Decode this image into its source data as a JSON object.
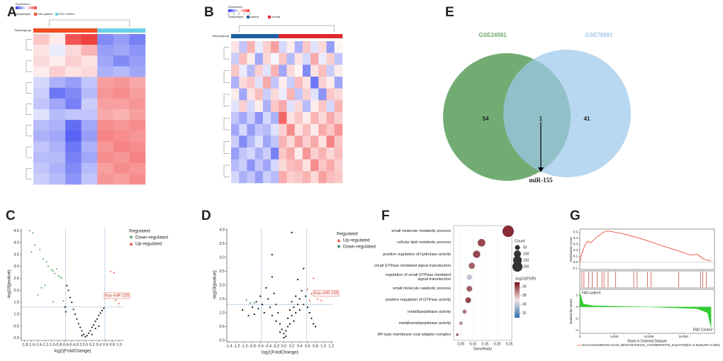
{
  "chart_data": [
    {
      "type": "heatmap",
      "panel": "A",
      "legend_title": "Expression",
      "group_title": "Sampletype",
      "row_group_label": "Samplegroup",
      "groups": [
        {
          "name": "FAD patient",
          "color": "#f04e23"
        },
        {
          "name": "FAD Control",
          "color": "#6cd0e8"
        }
      ],
      "column_group": [
        0,
        0,
        0,
        0,
        1,
        1,
        1
      ],
      "zlim": [
        -2,
        2
      ],
      "colors": [
        "#2f3cf0",
        "#ffffff",
        "#f04040"
      ],
      "matrix": [
        [
          0.6,
          0.2,
          1.8,
          2.0,
          -1.2,
          -1.0,
          -1.3
        ],
        [
          0.3,
          -0.2,
          0.4,
          0.8,
          -1.0,
          -0.9,
          -1.1
        ],
        [
          0.4,
          0.2,
          0.5,
          0.3,
          -0.9,
          -1.2,
          -1.0
        ],
        [
          0.2,
          0.5,
          0.3,
          0.4,
          -0.8,
          -0.7,
          -0.9
        ],
        [
          -0.4,
          -0.8,
          -1.0,
          -0.6,
          1.0,
          1.1,
          0.9
        ],
        [
          -0.5,
          -1.4,
          -1.2,
          -0.7,
          1.1,
          1.2,
          1.0
        ],
        [
          -0.6,
          -0.9,
          -1.3,
          -0.5,
          1.0,
          1.0,
          1.1
        ],
        [
          -0.3,
          -0.7,
          -0.6,
          -0.6,
          0.9,
          0.8,
          1.0
        ],
        [
          -0.7,
          -0.8,
          -1.5,
          -0.9,
          1.2,
          1.1,
          1.2
        ],
        [
          -0.8,
          -0.9,
          -1.6,
          -1.0,
          1.3,
          1.2,
          1.1
        ],
        [
          -0.6,
          -0.8,
          -1.4,
          -0.8,
          1.1,
          1.3,
          1.2
        ],
        [
          -0.7,
          -0.7,
          -1.3,
          -0.9,
          1.2,
          1.1,
          1.3
        ],
        [
          -0.6,
          -0.8,
          -1.2,
          -0.7,
          1.0,
          1.2,
          1.1
        ],
        [
          -0.5,
          -0.7,
          -1.1,
          -0.6,
          1.1,
          1.0,
          1.2
        ]
      ]
    },
    {
      "type": "heatmap",
      "panel": "B",
      "legend_title": "Expression",
      "group_title": "Sampletype",
      "row_group_label": "Samplegroup",
      "groups": [
        {
          "name": "patient",
          "color": "#1f5fa0"
        },
        {
          "name": "normal",
          "color": "#e0282d"
        }
      ],
      "column_group": [
        0,
        0,
        0,
        0,
        0,
        0,
        1,
        1,
        1,
        1,
        1,
        1,
        1,
        1
      ],
      "zlim": [
        -2,
        2
      ],
      "zticks": [
        -2,
        -1,
        0,
        1,
        2
      ],
      "colors": [
        "#2f3cf0",
        "#ffffff",
        "#f04040"
      ],
      "matrix": [
        [
          0.3,
          -0.6,
          0.8,
          -0.2,
          0.5,
          1.0,
          -0.4,
          0.2,
          -0.8,
          0.6,
          -0.3,
          0.4,
          -1.0,
          0.1
        ],
        [
          -0.5,
          0.7,
          0.2,
          -0.9,
          0.4,
          -0.1,
          0.6,
          -0.7,
          0.3,
          -0.4,
          0.9,
          -0.2,
          0.5,
          -0.6
        ],
        [
          0.6,
          -0.2,
          -0.7,
          0.5,
          -0.3,
          0.8,
          -0.9,
          0.4,
          0.1,
          -1.2,
          0.3,
          0.7,
          -0.5,
          0.2
        ],
        [
          -0.8,
          0.4,
          0.6,
          -0.3,
          0.9,
          -0.6,
          0.2,
          -0.5,
          0.7,
          0.3,
          -1.4,
          0.5,
          0.2,
          -0.9
        ],
        [
          0.2,
          -0.9,
          0.3,
          0.7,
          -0.5,
          0.4,
          -0.2,
          0.8,
          -0.6,
          0.5,
          -0.3,
          -1.1,
          0.6,
          0.4
        ],
        [
          -0.3,
          0.5,
          -0.4,
          0.2,
          -0.8,
          0.6,
          0.9,
          -0.3,
          0.4,
          -0.7,
          0.2,
          0.6,
          -0.4,
          0.8
        ],
        [
          -0.6,
          -0.9,
          -0.5,
          -1.1,
          -0.4,
          -0.8,
          1.6,
          0.3,
          0.6,
          0.2,
          0.8,
          0.4,
          0.9,
          0.5
        ],
        [
          -0.9,
          -0.4,
          -1.0,
          -0.6,
          -0.7,
          -0.3,
          0.5,
          1.2,
          0.3,
          0.7,
          0.2,
          0.9,
          0.6,
          1.1
        ],
        [
          -0.5,
          -1.2,
          -0.7,
          -0.3,
          -0.9,
          -0.6,
          0.8,
          0.4,
          1.0,
          0.5,
          0.9,
          0.3,
          1.3,
          0.6
        ],
        [
          -1.0,
          -0.6,
          -0.4,
          -0.8,
          -0.5,
          -1.3,
          0.6,
          0.9,
          0.2,
          1.1,
          0.5,
          0.8,
          0.4,
          0.7
        ],
        [
          -0.7,
          -0.5,
          -1.1,
          -0.6,
          -0.9,
          -0.4,
          0.4,
          0.7,
          0.8,
          0.3,
          1.2,
          0.6,
          0.9,
          0.5
        ],
        [
          -0.4,
          -0.8,
          -0.6,
          -1.0,
          -0.5,
          -0.7,
          0.9,
          0.5,
          0.6,
          0.8,
          0.4,
          1.0,
          0.7,
          0.6
        ]
      ]
    },
    {
      "type": "venn",
      "panel": "E",
      "sets": [
        {
          "name": "GSE24591",
          "color": "#6aa86a"
        },
        {
          "name": "GSE76591",
          "color": "#9cc7ea"
        }
      ],
      "values": [
        54,
        1,
        41
      ],
      "annotation": "miR-155"
    },
    {
      "type": "volcano",
      "panel": "C",
      "xlabel": "log2(FoldChange)",
      "ylabel": "-log10(pvalue)",
      "legend_title": "Regulated",
      "annotation": "hsa-miR-155",
      "xlim": [
        -1.9,
        1.15
      ],
      "ylim": [
        -0.1,
        4.6
      ],
      "xticks": [
        -1.8,
        -1.6,
        -1.4,
        -1.2,
        {
          "value": -1,
          "label": "-1.0"
        },
        -0.8,
        -0.6,
        -0.4,
        -0.2,
        {
          "value": 0,
          "label": "0.0"
        },
        0.2,
        0.4,
        0.6,
        0.8,
        {
          "value": 1,
          "label": "1.0"
        }
      ],
      "yticks": [
        {
          "value": 0,
          "label": "0.0"
        },
        0.5,
        {
          "value": 1,
          "label": "1.0"
        },
        1.5,
        {
          "value": 2,
          "label": "2.0"
        },
        2.5,
        {
          "value": 3,
          "label": "3.0"
        },
        3.5,
        {
          "value": 4,
          "label": "4.0"
        },
        4.5
      ],
      "vlines": [
        -0.58,
        0.58
      ],
      "hline": 1.3,
      "series": [
        {
          "color": "#222222",
          "marker": "circle",
          "x": [
            -0.55,
            -0.5,
            -0.45,
            -0.4,
            -0.35,
            -0.3,
            -0.25,
            -0.2,
            -0.15,
            -0.1,
            -0.05,
            0.0,
            0.05,
            0.1,
            0.15,
            0.2,
            0.25,
            0.3,
            0.35,
            0.4,
            0.45,
            0.5,
            0.55,
            -0.6,
            -0.58,
            0.2,
            -0.1,
            0.3,
            0.4
          ],
          "y": [
            2.2,
            2.0,
            1.7,
            1.5,
            1.2,
            1.0,
            0.8,
            0.6,
            0.45,
            0.3,
            0.15,
            0.05,
            0.1,
            0.2,
            0.3,
            0.45,
            0.55,
            0.7,
            0.8,
            0.95,
            1.05,
            1.15,
            1.25,
            1.3,
            1.1,
            0.15,
            0.1,
            0.4,
            0.5
          ]
        },
        {
          "name": "Down-regulated",
          "color": "#4aa55a",
          "marker": "triangle-down",
          "x": [
            -1.65,
            -1.55,
            -1.5,
            -1.6,
            -1.35,
            -1.25,
            -1.15,
            -1.1,
            -1.0,
            -0.95,
            -0.9,
            -0.85,
            -0.8,
            -0.75,
            -0.7,
            -1.3,
            -1.2,
            -1.4,
            -0.95,
            -0.65
          ],
          "y": [
            4.5,
            4.4,
            3.9,
            3.6,
            3.7,
            3.3,
            3.2,
            3.0,
            2.85,
            2.8,
            2.7,
            2.9,
            2.6,
            2.55,
            2.5,
            2.1,
            2.2,
            1.8,
            1.5,
            1.55
          ]
        },
        {
          "name": "Up-regulated",
          "color": "#e8503c",
          "marker": "triangle-up",
          "x": [
            0.75,
            0.85,
            0.7,
            0.9,
            1.0
          ],
          "y": [
            2.8,
            2.75,
            1.75,
            1.6,
            1.45
          ]
        }
      ]
    },
    {
      "type": "volcano",
      "panel": "D",
      "xlabel": "log2(FoldChange)",
      "ylabel": "-log10(pvalue)",
      "legend_title": "Regulated",
      "annotation": "hsa-miR-155",
      "xlim": [
        -1.45,
        1.25
      ],
      "ylim": [
        -0.05,
        4.05
      ],
      "xticks": [
        -1.4,
        -1.2,
        {
          "value": -1,
          "label": "-1.0"
        },
        -0.8,
        -0.6,
        -0.4,
        -0.2,
        {
          "value": 0,
          "label": "0.0"
        },
        0.2,
        0.4,
        0.6,
        0.8,
        {
          "value": 1,
          "label": "1.0"
        },
        1.2
      ],
      "yticks": [
        {
          "value": 0,
          "label": "0.0"
        },
        0.5,
        {
          "value": 1,
          "label": "1.0"
        },
        1.5,
        {
          "value": 2,
          "label": "2.0"
        },
        2.5,
        {
          "value": 3,
          "label": "3.0"
        },
        3.5,
        {
          "value": 4,
          "label": "4.0"
        }
      ],
      "vlines": [
        -0.58,
        0.58
      ],
      "hline": 1.3,
      "series": [
        {
          "color": "#111111",
          "marker": "circle",
          "x": [
            -1.05,
            -0.9,
            -0.8,
            -0.75,
            -0.7,
            -0.65,
            -0.6,
            -0.55,
            -0.5,
            -0.45,
            -0.4,
            -0.35,
            -0.3,
            -0.3,
            -0.25,
            -0.2,
            -0.2,
            -0.15,
            -0.1,
            -0.1,
            -0.05,
            0.0,
            0.0,
            0.05,
            0.05,
            0.1,
            0.1,
            0.15,
            0.15,
            0.2,
            0.2,
            0.25,
            0.25,
            0.3,
            0.3,
            0.35,
            0.35,
            0.4,
            0.4,
            0.45,
            0.5,
            0.5,
            0.55,
            0.6,
            0.65,
            0.7,
            0.75,
            0.8,
            0.2,
            -0.3
          ],
          "y": [
            1.1,
            0.9,
            1.2,
            0.95,
            1.4,
            1.15,
            1.6,
            1.3,
            1.0,
            1.9,
            1.5,
            1.2,
            2.3,
            0.9,
            1.7,
            1.3,
            0.7,
            1.0,
            0.6,
            0.3,
            0.4,
            0.1,
            0.25,
            0.35,
            0.15,
            0.5,
            0.8,
            0.6,
            1.1,
            0.9,
            1.4,
            1.2,
            0.7,
            1.6,
            1.0,
            1.3,
            2.2,
            1.5,
            1.1,
            1.8,
            1.3,
            2.6,
            1.6,
            1.2,
            1.0,
            0.8,
            0.6,
            0.5,
            3.9,
            3.1
          ]
        },
        {
          "name": "Up-regulated",
          "color": "#e8503c",
          "marker": "triangle-up",
          "x": [
            0.75,
            0.6,
            0.7,
            0.85,
            0.65,
            0.95
          ],
          "y": [
            2.25,
            1.85,
            1.7,
            1.5,
            1.45,
            1.45
          ]
        },
        {
          "name": "Down-regulated",
          "color": "#2f7a66",
          "marker": "triangle-down",
          "x": [
            -0.95,
            -0.85,
            -0.75
          ],
          "y": [
            1.45,
            1.35,
            1.35
          ]
        }
      ]
    },
    {
      "type": "dot",
      "panel": "F",
      "xlabel": "GeneRatio",
      "size_title": "Count",
      "color_title": "-log10(FDR)",
      "categories": [
        "small molecule metabolic process",
        "cellular lipid metabolic process",
        "positive regulation of hydrolase activity",
        "small GTPase mediated signal transduction",
        "regulation of small GTPase mediated signal transduction",
        "small molecule catabolic process",
        "positive regulation of GTPase activity",
        "metallopeptidase activity",
        "metalloendopeptidase activity",
        "AP-type membrane coat adaptor complex"
      ],
      "values": [
        0.245,
        0.135,
        0.115,
        0.095,
        0.085,
        0.085,
        0.08,
        0.065,
        0.05,
        0.035
      ],
      "count": [
        250,
        110,
        100,
        70,
        40,
        60,
        60,
        30,
        20,
        10
      ],
      "fdr": [
        25.5,
        26,
        26,
        26.5,
        30,
        26.5,
        26,
        27,
        27.5,
        26
      ],
      "xlim": [
        0.02,
        0.26
      ],
      "xticks": [
        0.05,
        {
          "value": 0.1,
          "label": "0.10"
        },
        0.15,
        {
          "value": 0.2,
          "label": "0.20"
        },
        0.25
      ],
      "count_ticks": [
        50,
        100,
        150,
        200
      ],
      "clim": [
        25,
        33
      ],
      "cticks": [
        26,
        28,
        30,
        32
      ],
      "colors": [
        "#7a0f1a",
        "#f3e6e6",
        "#2f6fb0"
      ]
    },
    {
      "type": "gsea",
      "panel": "G",
      "ylabel": "Enrichment score",
      "metric_label": "Ranked list metric",
      "xlabel": "Rank in Ordered Dataset",
      "pos_label": "FAD patient",
      "neg_label": "FAD Control",
      "legend": "GLYCOSAMINOGLYCAN_BIOSYNTHESIS_CHONDROITIN_SULFATE(ES=0.5245,NP=0.003)",
      "color": "#e8503c",
      "hit_color": "#c0392b",
      "metric_color": "#33cc33",
      "xlim": [
        0,
        19500
      ],
      "xticks": [
        0,
        {
          "value": 5000,
          "label": "5,000"
        },
        {
          "value": 10000,
          "label": "10,000"
        },
        {
          "value": 15000,
          "label": "15,000"
        }
      ],
      "x": [
        0,
        300,
        800,
        1200,
        1500,
        2500,
        3500,
        4000,
        6000,
        8000,
        10000,
        12000,
        14000,
        16000,
        17000,
        18000,
        19000
      ],
      "values": [
        0,
        0.15,
        0.3,
        0.35,
        0.32,
        0.42,
        0.5,
        0.52,
        0.48,
        0.42,
        0.35,
        0.27,
        0.2,
        0.12,
        0.13,
        0.05,
        0.02
      ],
      "ylim": [
        -0.12,
        0.55
      ],
      "yticks": [
        0.5,
        0.4,
        0.3,
        0.2,
        0.1,
        {
          "value": 0,
          "label": "0.0"
        },
        -0.1
      ],
      "hits": [
        300,
        600,
        1300,
        1800,
        2500,
        3200,
        3500,
        4100,
        5200,
        7800,
        8300,
        9800,
        10300,
        14300,
        17500,
        17800,
        18300
      ],
      "metric_x": [
        0,
        500,
        2000,
        10000,
        17000,
        18500,
        19000
      ],
      "metric": [
        2.5,
        0.5,
        0.2,
        0,
        -0.3,
        -1,
        -3.5
      ],
      "metric_lim": [
        -4.5,
        3
      ],
      "metric_ticks": [
        2,
        0,
        -2,
        -4
      ]
    }
  ]
}
